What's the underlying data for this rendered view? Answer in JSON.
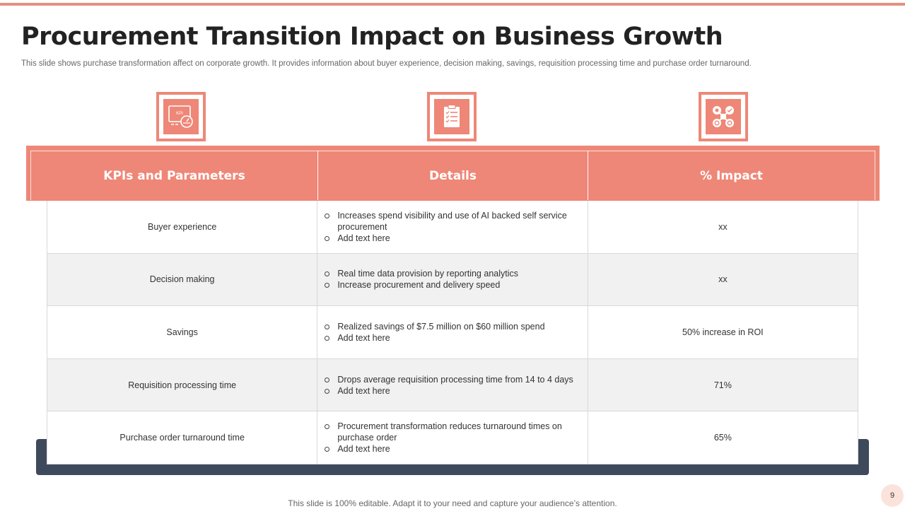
{
  "slide": {
    "title": "Procurement Transition Impact on Business Growth",
    "subtitle": "This slide shows purchase transformation affect on corporate growth. It provides information about buyer experience, decision making, savings, requisition processing time and purchase order turnaround.",
    "footer": "This slide is 100% editable. Adapt it to your need and capture your audience’s attention.",
    "page_number": "9",
    "accent_color": "#ee8777",
    "dark_color": "#3e4a5c"
  },
  "icons": [
    {
      "name": "kpi-dashboard-icon",
      "label": "KPI"
    },
    {
      "name": "clipboard-checklist-icon"
    },
    {
      "name": "network-hub-icon"
    }
  ],
  "table": {
    "headers": [
      "KPIs and Parameters",
      "Details",
      "% Impact"
    ],
    "rows": [
      {
        "kpi": "Buyer experience",
        "details": [
          "Increases spend visibility and use of AI backed self service procurement",
          "Add text here"
        ],
        "impact": "xx"
      },
      {
        "kpi": "Decision making",
        "details": [
          "Real time data provision  by reporting analytics",
          "Increase procurement  and delivery  speed"
        ],
        "impact": "xx"
      },
      {
        "kpi": "Savings",
        "details": [
          "Realized savings  of $7.5 million on $60 million spend",
          "Add text here"
        ],
        "impact": "50% increase in ROI"
      },
      {
        "kpi": "Requisition processing time",
        "details": [
          "Drops average  requisition processing time from  14 to 4 days",
          "Add text here"
        ],
        "impact": "71%"
      },
      {
        "kpi": "Purchase order turnaround  time",
        "details": [
          "Procurement transformation reduces turnaround  times on purchase order",
          "Add text here"
        ],
        "impact": "65%"
      }
    ]
  }
}
